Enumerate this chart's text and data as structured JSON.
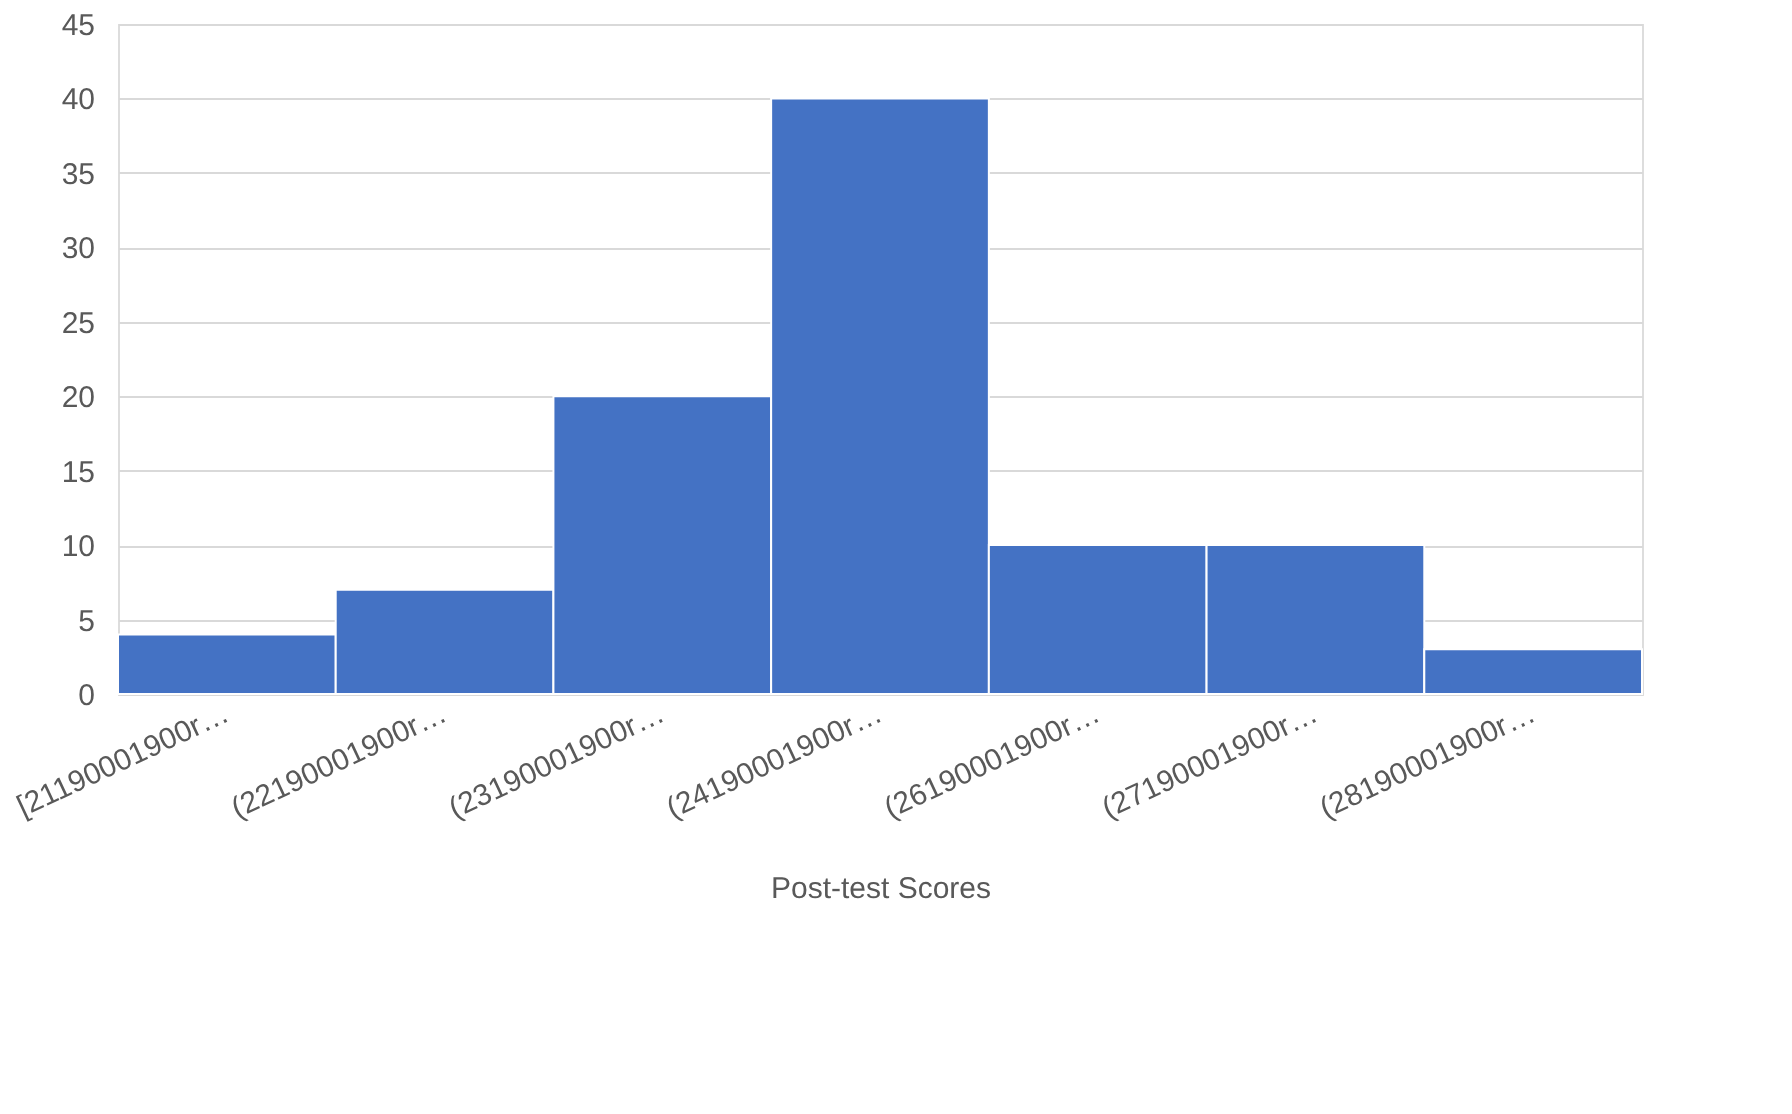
{
  "chart_data": {
    "type": "bar",
    "xlabel": "Post-test Scores",
    "categories": [
      "[21190001900r…",
      "(22190001900r…",
      "(23190001900r…",
      "(24190001900r…",
      "(26190001900r…",
      "(27190001900r…",
      "(28190001900r…"
    ],
    "values": [
      4,
      7,
      20,
      40,
      10,
      10,
      3
    ],
    "color": "#4472c4",
    "ylim": [
      0,
      45
    ],
    "yticks": [
      0,
      5,
      10,
      15,
      20,
      25,
      30,
      35,
      40,
      45
    ],
    "grid": "y"
  }
}
